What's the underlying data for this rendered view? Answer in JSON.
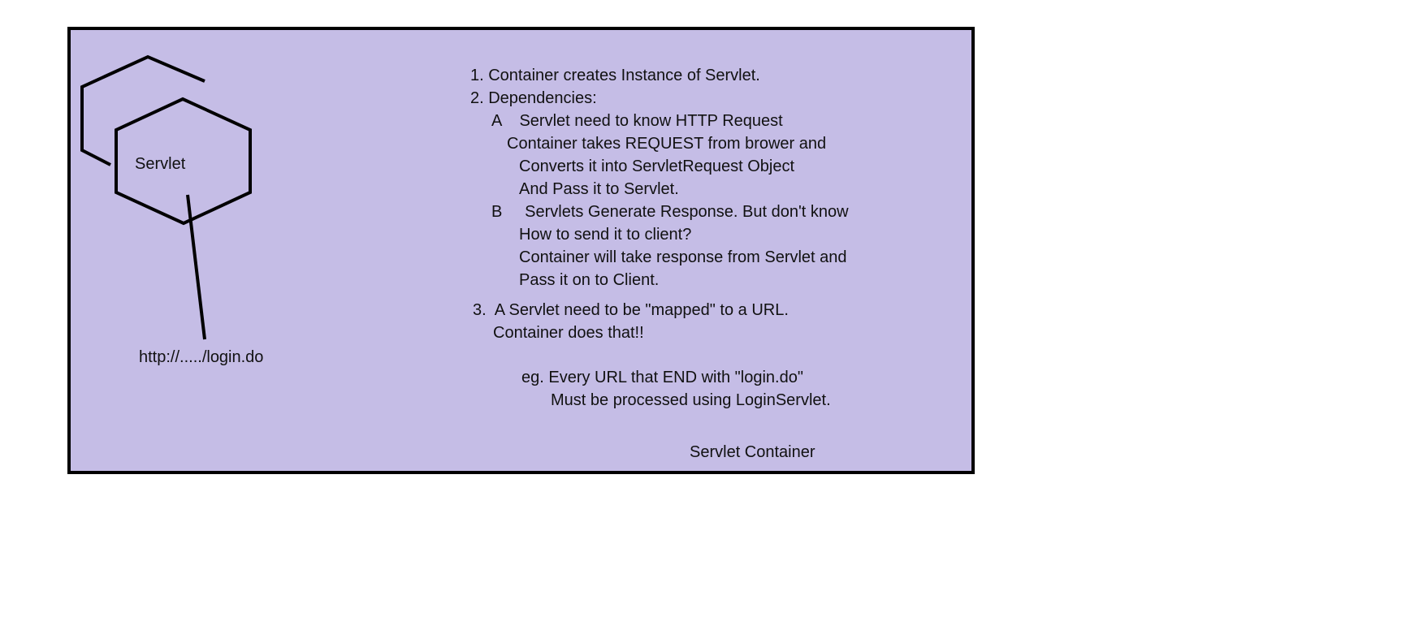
{
  "colors": {
    "container_fill": "#c5bde6",
    "stroke": "#000000",
    "background": "#ffffff",
    "text": "#111111"
  },
  "diagram": {
    "servlet_label": "Servlet",
    "url_label": "http://...../login.do",
    "container_label": "Servlet Container",
    "notes": [
      "1. Container creates Instance of Servlet.",
      "2. Dependencies:",
      "A    Servlet need to know HTTP Request",
      "Container takes REQUEST from brower and",
      "Converts it into ServletRequest Object",
      "And Pass it to Servlet.",
      "B     Servlets Generate Response. But don't know",
      "How to send it to client?",
      "Container will take response from Servlet and",
      "Pass it on to Client.",
      "3.  A Servlet need to be \"mapped\" to a URL.",
      "Container does that!!",
      "eg. Every URL that END with \"login.do\"",
      "Must be processed using LoginServlet."
    ]
  }
}
